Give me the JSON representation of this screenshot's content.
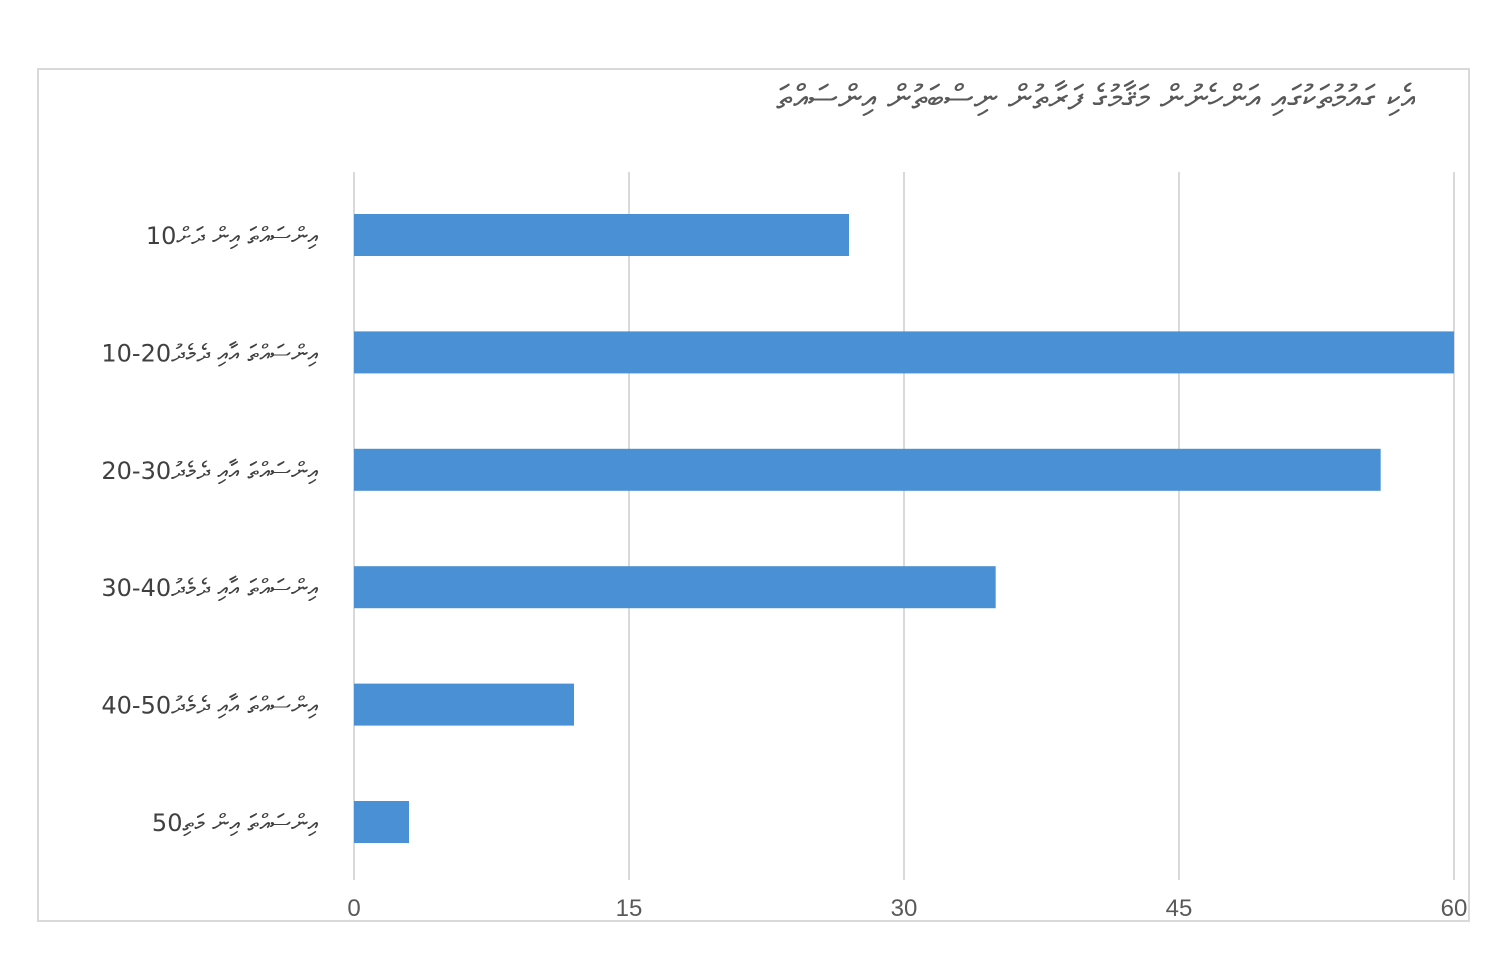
{
  "chart_data": {
    "type": "bar",
    "orientation": "horizontal",
    "title": "އެކި ގައުމުތަކުގައި އަންހެނުން މަޤާމުގެ ފަރާތުން ނިސްބަތުން އިންސައްތަ",
    "categories": [
      "10އިންސައްތަ އިން ދަށް",
      "10-20އިންސައްތަ އާއި ދެމެދު",
      "20-30އިންސައްތަ އާއި ދެމެދު",
      "30-40އިންސައްތަ އާއި ދެމެދު",
      "40-50އިންސައްތަ އާއި ދެމެދު",
      "50އިންސައްތަ އިން މަތި"
    ],
    "values": [
      27,
      60,
      56,
      35,
      12,
      3
    ],
    "xlim": [
      0,
      60
    ],
    "xticks": [
      0,
      15,
      30,
      45,
      60
    ],
    "grid": true,
    "legend": "none",
    "bar_color": "#4a90d4",
    "grid_color": "#d9d9d9",
    "xlabel": "",
    "ylabel": ""
  }
}
